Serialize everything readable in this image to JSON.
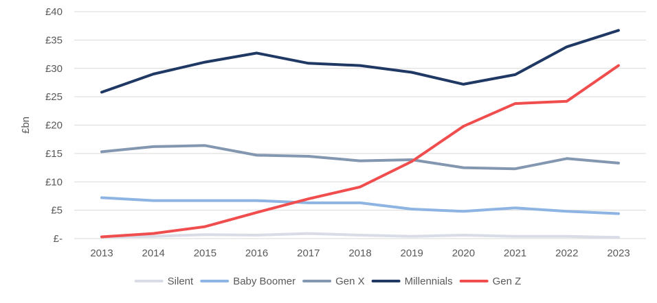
{
  "chart_data": {
    "type": "line",
    "title": "",
    "xlabel": "",
    "ylabel": "£bn",
    "x": [
      "2013",
      "2014",
      "2015",
      "2016",
      "2017",
      "2018",
      "2019",
      "2020",
      "2021",
      "2022",
      "2023"
    ],
    "ylim": [
      0,
      40
    ],
    "ytick_values": [
      0,
      5,
      10,
      15,
      20,
      25,
      30,
      35,
      40
    ],
    "ytick_labels": [
      "£-",
      "£5",
      "£10",
      "£15",
      "£20",
      "£25",
      "£30",
      "£35",
      "£40"
    ],
    "grid": true,
    "legend_position": "bottom",
    "series": [
      {
        "name": "Silent",
        "color": "#d9dce6",
        "values": [
          0.3,
          0.4,
          0.7,
          0.6,
          0.9,
          0.6,
          0.4,
          0.6,
          0.4,
          0.4,
          0.2
        ]
      },
      {
        "name": "Baby Boomer",
        "color": "#8eb4e3",
        "values": [
          7.2,
          6.7,
          6.7,
          6.7,
          6.3,
          6.3,
          5.2,
          4.8,
          5.4,
          4.8,
          4.4
        ]
      },
      {
        "name": "Gen X",
        "color": "#8497b0",
        "values": [
          15.3,
          16.2,
          16.4,
          14.7,
          14.5,
          13.7,
          13.9,
          12.5,
          12.3,
          14.1,
          13.3
        ]
      },
      {
        "name": "Millennials",
        "color": "#1f3864",
        "values": [
          25.8,
          29.0,
          31.1,
          32.7,
          30.9,
          30.5,
          29.3,
          27.2,
          28.9,
          33.8,
          36.7
        ]
      },
      {
        "name": "Gen Z",
        "color": "#f04e4e",
        "values": [
          0.3,
          0.9,
          2.1,
          4.6,
          7.0,
          9.1,
          13.6,
          19.8,
          23.8,
          24.2,
          30.5
        ]
      }
    ]
  }
}
